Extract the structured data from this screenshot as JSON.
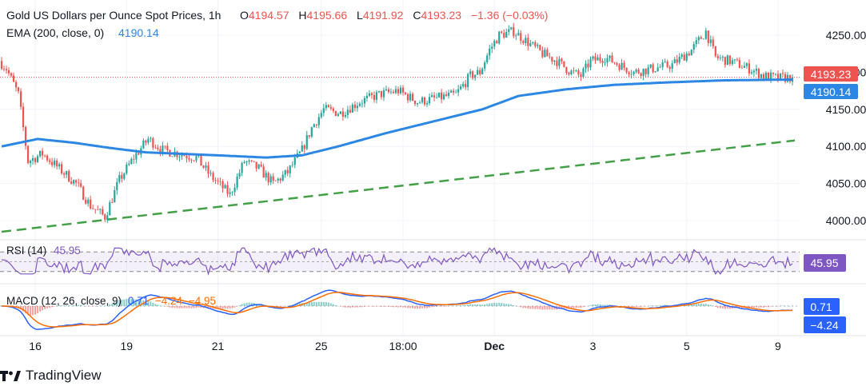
{
  "header": {
    "symbol_title": "Gold US Dollars per Ounce Spot Prices, 1h",
    "o_label": "O",
    "o_value": "4194.57",
    "h_label": "H",
    "h_value": "4195.66",
    "l_label": "L",
    "l_value": "4191.92",
    "c_label": "C",
    "c_value": "4193.23",
    "change": "−1.36 (−0.03%)"
  },
  "ema_legend": {
    "label": "EMA (200, close, 0)",
    "value": "4190.14"
  },
  "rsi_legend": {
    "label": "RSI (14)",
    "value": "45.95"
  },
  "macd_legend": {
    "label": "MACD (12, 26, close, 9)",
    "macd": "0.71",
    "signal": "−4.24",
    "hist": "−4.95"
  },
  "badges": {
    "price": "4193.23",
    "ema": "4190.14",
    "rsi": "45.95",
    "macd": "0.71",
    "signal": "−4.24"
  },
  "brand": {
    "name": "TradingView"
  },
  "colors": {
    "up": "#26a69a",
    "down": "#ef5350",
    "ema": "#2b87e3",
    "trend": "#43a047",
    "rsi": "#7e57c2",
    "macd": "#2962ff",
    "signal": "#ff6d00",
    "text": "#131722"
  },
  "chart_data": {
    "type": "candlestick",
    "title": "Gold US Dollars per Ounce Spot Prices, 1h",
    "y_ticks": [
      "4250.00",
      "4200.00",
      "4150.00",
      "4100.00",
      "4050.00",
      "4000.00"
    ],
    "y_tick_values": [
      4250,
      4200,
      4150,
      4100,
      4050,
      4000
    ],
    "ylim": [
      3985,
      4265
    ],
    "x_tick_labels": [
      "16",
      "19",
      "21",
      "25",
      "18:00",
      "Dec",
      "3",
      "5",
      "9"
    ],
    "x_tick_index": [
      14,
      52,
      90,
      133,
      167,
      205,
      246,
      285,
      323
    ],
    "bar_count": 330,
    "last_close": 4193.23,
    "price_keypoints": [
      [
        0,
        4215
      ],
      [
        3,
        4205
      ],
      [
        8,
        4170
      ],
      [
        12,
        4080
      ],
      [
        18,
        4090
      ],
      [
        25,
        4070
      ],
      [
        32,
        4050
      ],
      [
        38,
        4020
      ],
      [
        44,
        4005
      ],
      [
        50,
        4055
      ],
      [
        56,
        4085
      ],
      [
        62,
        4110
      ],
      [
        68,
        4095
      ],
      [
        75,
        4090
      ],
      [
        82,
        4085
      ],
      [
        88,
        4060
      ],
      [
        96,
        4035
      ],
      [
        102,
        4080
      ],
      [
        108,
        4070
      ],
      [
        114,
        4050
      ],
      [
        120,
        4065
      ],
      [
        126,
        4095
      ],
      [
        130,
        4125
      ],
      [
        135,
        4150
      ],
      [
        142,
        4145
      ],
      [
        150,
        4160
      ],
      [
        158,
        4170
      ],
      [
        166,
        4175
      ],
      [
        174,
        4160
      ],
      [
        182,
        4165
      ],
      [
        190,
        4170
      ],
      [
        196,
        4195
      ],
      [
        200,
        4200
      ],
      [
        204,
        4230
      ],
      [
        208,
        4250
      ],
      [
        214,
        4255
      ],
      [
        220,
        4240
      ],
      [
        226,
        4225
      ],
      [
        232,
        4215
      ],
      [
        238,
        4200
      ],
      [
        242,
        4195
      ],
      [
        246,
        4215
      ],
      [
        252,
        4220
      ],
      [
        258,
        4210
      ],
      [
        264,
        4200
      ],
      [
        272,
        4205
      ],
      [
        280,
        4210
      ],
      [
        288,
        4230
      ],
      [
        294,
        4255
      ],
      [
        298,
        4220
      ],
      [
        304,
        4215
      ],
      [
        312,
        4205
      ],
      [
        318,
        4195
      ],
      [
        324,
        4192
      ],
      [
        330,
        4193.23
      ]
    ],
    "ema200_keypoints": [
      [
        0,
        4100
      ],
      [
        15,
        4110
      ],
      [
        30,
        4105
      ],
      [
        45,
        4098
      ],
      [
        60,
        4092
      ],
      [
        75,
        4090
      ],
      [
        90,
        4088
      ],
      [
        110,
        4085
      ],
      [
        125,
        4088
      ],
      [
        140,
        4100
      ],
      [
        160,
        4118
      ],
      [
        180,
        4134
      ],
      [
        200,
        4150
      ],
      [
        215,
        4168
      ],
      [
        235,
        4177
      ],
      [
        255,
        4183
      ],
      [
        275,
        4186
      ],
      [
        300,
        4189
      ],
      [
        330,
        4190.14
      ]
    ],
    "trendline": {
      "from": [
        0,
        3985
      ],
      "to": [
        330,
        4108
      ]
    },
    "rsi": {
      "levels": [
        70,
        50,
        30
      ],
      "last": 45.95
    },
    "macd": {
      "macd_last": 0.71,
      "signal_last": -4.24,
      "hist_last": -4.95
    }
  }
}
